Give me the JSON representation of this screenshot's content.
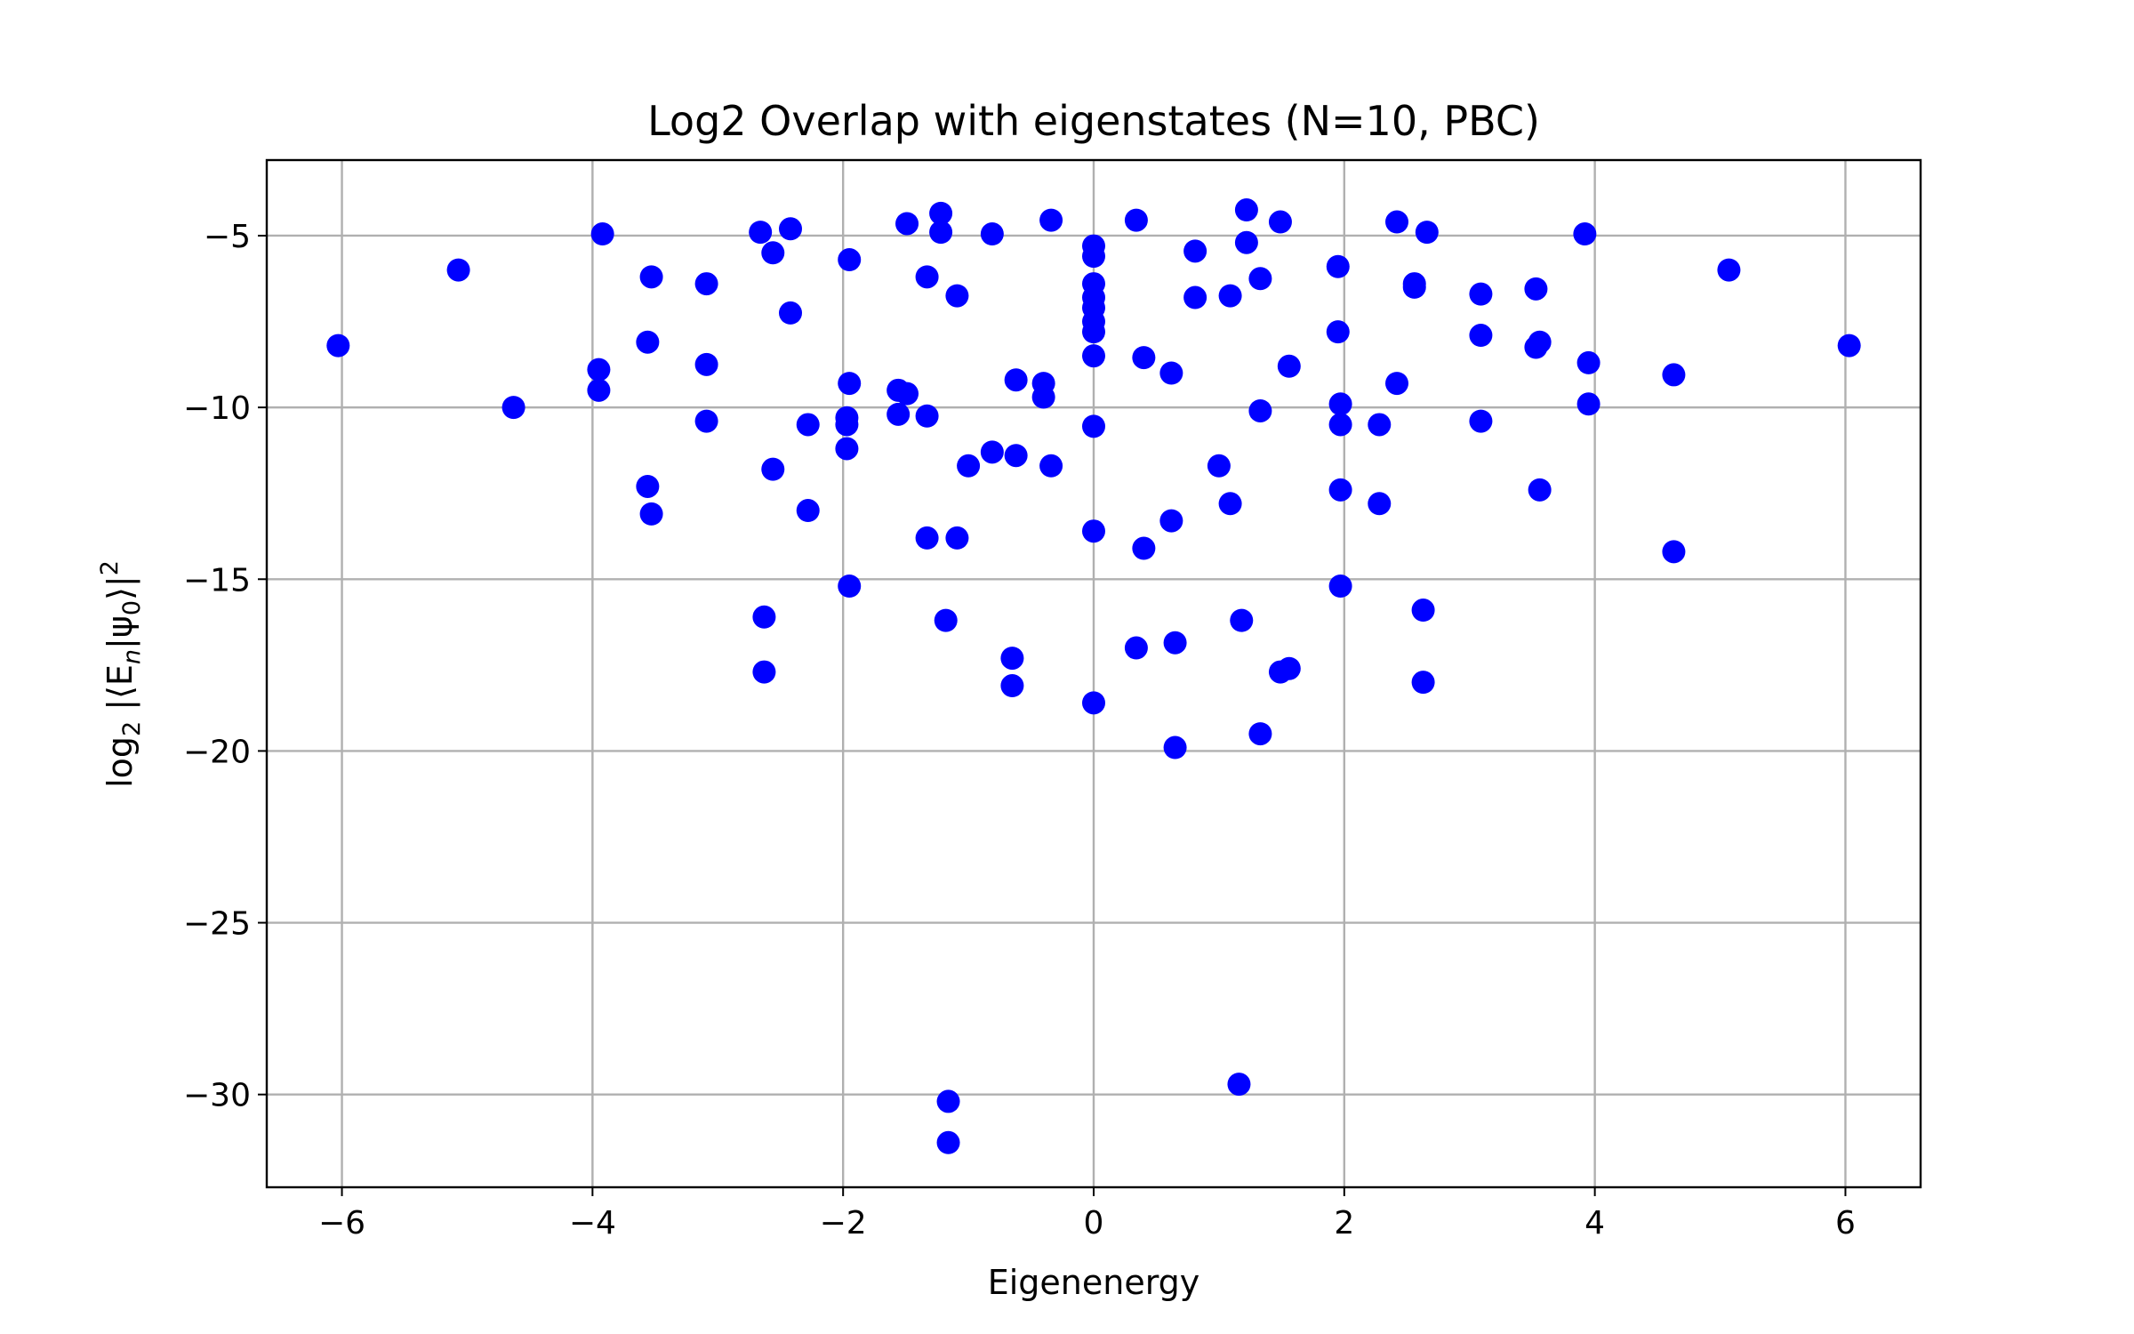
{
  "chart_data": {
    "type": "scatter",
    "title": "Log2 Overlap with eigenstates (N=10, PBC)",
    "xlabel": "Eigenenergy",
    "ylabel_parts": {
      "log": "log",
      "sub": "2",
      "body": " |⟨E",
      "n": "n",
      "mid": "|ψ",
      "zero": "0",
      "end": "⟩|",
      "sup": "2"
    },
    "xlim": [
      -6.6,
      6.6
    ],
    "ylim": [
      -32.7,
      -2.8
    ],
    "xticks": [
      -6,
      -4,
      -2,
      0,
      2,
      4,
      6
    ],
    "xtick_labels": [
      "−6",
      "−4",
      "−2",
      "0",
      "2",
      "4",
      "6"
    ],
    "yticks": [
      -5,
      -10,
      -15,
      -20,
      -25,
      -30
    ],
    "ytick_labels": [
      "−5",
      "−10",
      "−15",
      "−20",
      "−25",
      "−30"
    ],
    "grid": true,
    "marker_color": "#0000ff",
    "points": [
      [
        -6.03,
        -8.2
      ],
      [
        -5.07,
        -6.0
      ],
      [
        -4.63,
        -10.0
      ],
      [
        -3.95,
        -8.9
      ],
      [
        -3.95,
        -9.5
      ],
      [
        -3.92,
        -4.95
      ],
      [
        -3.56,
        -8.1
      ],
      [
        -3.53,
        -6.2
      ],
      [
        -3.56,
        -12.3
      ],
      [
        -3.53,
        -13.1
      ],
      [
        -3.09,
        -6.4
      ],
      [
        -3.09,
        -8.75
      ],
      [
        -3.09,
        -10.4
      ],
      [
        -2.66,
        -4.9
      ],
      [
        -2.63,
        -16.1
      ],
      [
        -2.63,
        -17.7
      ],
      [
        -2.56,
        -5.5
      ],
      [
        -2.56,
        -11.8
      ],
      [
        -2.42,
        -4.8
      ],
      [
        -2.42,
        -7.25
      ],
      [
        -2.28,
        -10.5
      ],
      [
        -2.28,
        -13.0
      ],
      [
        -1.95,
        -5.7
      ],
      [
        -1.95,
        -9.3
      ],
      [
        -1.97,
        -10.3
      ],
      [
        -1.97,
        -10.5
      ],
      [
        -1.97,
        -11.2
      ],
      [
        -1.95,
        -15.2
      ],
      [
        -1.56,
        -9.5
      ],
      [
        -1.56,
        -10.2
      ],
      [
        -1.49,
        -4.65
      ],
      [
        -1.49,
        -9.6
      ],
      [
        -1.33,
        -6.2
      ],
      [
        -1.33,
        -10.25
      ],
      [
        -1.33,
        -13.8
      ],
      [
        -1.22,
        -4.35
      ],
      [
        -1.22,
        -4.9
      ],
      [
        -1.18,
        -16.2
      ],
      [
        -1.16,
        -30.2
      ],
      [
        -1.16,
        -31.4
      ],
      [
        -1.09,
        -6.75
      ],
      [
        -1.09,
        -13.8
      ],
      [
        -1.0,
        -11.7
      ],
      [
        -0.81,
        -4.95
      ],
      [
        -0.81,
        -11.3
      ],
      [
        -0.65,
        -17.3
      ],
      [
        -0.65,
        -18.1
      ],
      [
        -0.62,
        -9.2
      ],
      [
        -0.62,
        -11.4
      ],
      [
        -0.4,
        -9.3
      ],
      [
        -0.4,
        -9.7
      ],
      [
        -0.34,
        -4.55
      ],
      [
        -0.34,
        -11.7
      ],
      [
        0.0,
        -5.3
      ],
      [
        0.0,
        -5.6
      ],
      [
        0.0,
        -6.4
      ],
      [
        0.0,
        -6.8
      ],
      [
        0.0,
        -7.1
      ],
      [
        0.0,
        -7.5
      ],
      [
        0.0,
        -7.8
      ],
      [
        0.0,
        -8.5
      ],
      [
        0.0,
        -10.55
      ],
      [
        0.0,
        -13.6
      ],
      [
        0.0,
        -18.6
      ],
      [
        0.34,
        -4.55
      ],
      [
        0.34,
        -17.0
      ],
      [
        0.4,
        -8.55
      ],
      [
        0.4,
        -14.1
      ],
      [
        0.62,
        -9.0
      ],
      [
        0.62,
        -13.3
      ],
      [
        0.65,
        -16.85
      ],
      [
        0.65,
        -19.9
      ],
      [
        0.81,
        -5.45
      ],
      [
        0.81,
        -6.8
      ],
      [
        1.0,
        -11.7
      ],
      [
        1.09,
        -6.75
      ],
      [
        1.09,
        -12.8
      ],
      [
        1.16,
        -29.7
      ],
      [
        1.18,
        -16.2
      ],
      [
        1.22,
        -4.25
      ],
      [
        1.22,
        -5.2
      ],
      [
        1.33,
        -6.25
      ],
      [
        1.33,
        -10.1
      ],
      [
        1.33,
        -19.5
      ],
      [
        1.49,
        -4.6
      ],
      [
        1.49,
        -17.7
      ],
      [
        1.56,
        -8.8
      ],
      [
        1.56,
        -17.6
      ],
      [
        1.95,
        -5.9
      ],
      [
        1.95,
        -7.8
      ],
      [
        1.97,
        -9.9
      ],
      [
        1.97,
        -10.5
      ],
      [
        1.97,
        -12.4
      ],
      [
        1.97,
        -15.2
      ],
      [
        2.28,
        -10.5
      ],
      [
        2.28,
        -12.8
      ],
      [
        2.42,
        -4.6
      ],
      [
        2.42,
        -9.3
      ],
      [
        2.56,
        -6.4
      ],
      [
        2.56,
        -6.5
      ],
      [
        2.63,
        -15.9
      ],
      [
        2.63,
        -18.0
      ],
      [
        2.66,
        -4.9
      ],
      [
        3.09,
        -6.7
      ],
      [
        3.09,
        -7.9
      ],
      [
        3.09,
        -10.4
      ],
      [
        3.53,
        -6.55
      ],
      [
        3.53,
        -8.25
      ],
      [
        3.56,
        -8.1
      ],
      [
        3.56,
        -12.4
      ],
      [
        3.92,
        -4.95
      ],
      [
        3.95,
        -8.7
      ],
      [
        3.95,
        -9.9
      ],
      [
        4.63,
        -9.05
      ],
      [
        4.63,
        -14.2
      ],
      [
        5.07,
        -6.0
      ],
      [
        6.03,
        -8.2
      ]
    ]
  }
}
